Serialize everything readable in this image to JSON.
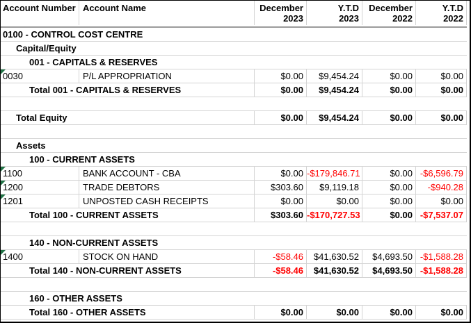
{
  "report": {
    "columns": {
      "account_number": "Account Number",
      "account_name": "Account Name"
    },
    "period_columns": [
      {
        "line1": "December",
        "line2": "2023"
      },
      {
        "line1": "Y.T.D",
        "line2": "2023"
      },
      {
        "line1": "December",
        "line2": "2022"
      },
      {
        "line1": "Y.T.D",
        "line2": "2022"
      }
    ],
    "rows": [
      {
        "type": "section",
        "indent": 0,
        "label": "0100 - CONTROL COST CENTRE"
      },
      {
        "type": "section",
        "indent": 1,
        "label": "Capital/Equity"
      },
      {
        "type": "section",
        "indent": 2,
        "label": "001 - CAPITALS & RESERVES"
      },
      {
        "type": "account",
        "number": "0030",
        "name": "P/L APPROPRIATION",
        "flag": true,
        "values": [
          "$0.00",
          "$9,454.24",
          "$0.00",
          "$0.00"
        ]
      },
      {
        "type": "total",
        "indent": 2,
        "label": "Total 001 - CAPITALS & RESERVES",
        "values": [
          "$0.00",
          "$9,454.24",
          "$0.00",
          "$0.00"
        ]
      },
      {
        "type": "empty"
      },
      {
        "type": "total",
        "indent": 1,
        "label": "Total Equity",
        "values": [
          "$0.00",
          "$9,454.24",
          "$0.00",
          "$0.00"
        ]
      },
      {
        "type": "empty"
      },
      {
        "type": "section",
        "indent": 1,
        "label": "Assets"
      },
      {
        "type": "section",
        "indent": 2,
        "label": "100 - CURRENT ASSETS"
      },
      {
        "type": "account",
        "number": "1100",
        "name": "BANK ACCOUNT - CBA",
        "flag": true,
        "values": [
          "$0.00",
          "-$179,846.71",
          "$0.00",
          "-$6,596.79"
        ]
      },
      {
        "type": "account",
        "number": "1200",
        "name": "TRADE DEBTORS",
        "flag": true,
        "values": [
          "$303.60",
          "$9,119.18",
          "$0.00",
          "-$940.28"
        ]
      },
      {
        "type": "account",
        "number": "1201",
        "name": "UNPOSTED CASH RECEIPTS",
        "flag": true,
        "values": [
          "$0.00",
          "$0.00",
          "$0.00",
          "$0.00"
        ]
      },
      {
        "type": "total",
        "indent": 2,
        "label": "Total 100 - CURRENT ASSETS",
        "values": [
          "$303.60",
          "-$170,727.53",
          "$0.00",
          "-$7,537.07"
        ]
      },
      {
        "type": "empty"
      },
      {
        "type": "section",
        "indent": 2,
        "label": "140 - NON-CURRENT ASSETS"
      },
      {
        "type": "account",
        "number": "1400",
        "name": "STOCK ON HAND",
        "flag": true,
        "values": [
          "-$58.46",
          "$41,630.52",
          "$4,693.50",
          "-$1,588.28"
        ]
      },
      {
        "type": "total",
        "indent": 2,
        "label": "Total 140 - NON-CURRENT ASSETS",
        "values": [
          "-$58.46",
          "$41,630.52",
          "$4,693.50",
          "-$1,588.28"
        ]
      },
      {
        "type": "empty"
      },
      {
        "type": "section",
        "indent": 2,
        "label": "160 - OTHER ASSETS"
      },
      {
        "type": "total",
        "indent": 2,
        "label": "Total 160 - OTHER ASSETS",
        "values": [
          "$0.00",
          "$0.00",
          "$0.00",
          "$0.00"
        ]
      }
    ],
    "colors": {
      "negative": "#ff0000",
      "text": "#000000",
      "gridline": "#d4d4d4",
      "header_divider": "#9b9b9b",
      "flag_green": "#217346",
      "outer_border": "#000000"
    }
  }
}
